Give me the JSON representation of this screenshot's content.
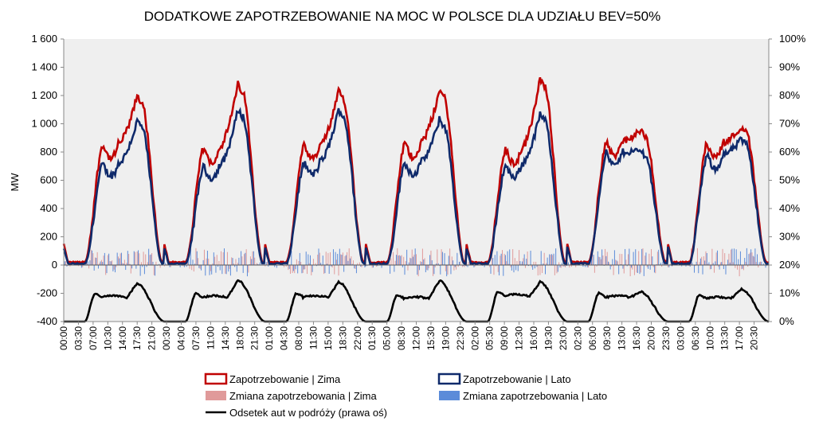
{
  "chart_data": {
    "type": "line",
    "title": "DODATKOWE ZAPOTRZEBOWANIE NA MOC W POLSCE DLA UDZIAŁU BEV=50%",
    "ylabel": "MW",
    "xlabel": "",
    "ylim": [
      -400,
      1600
    ],
    "yticks": [
      -400,
      -200,
      0,
      200,
      400,
      600,
      800,
      "1 000",
      "1 200",
      "1 400",
      "1 600"
    ],
    "y2lim": [
      0,
      100
    ],
    "y2ticks": [
      "0%",
      "10%",
      "20%",
      "30%",
      "40%",
      "50%",
      "60%",
      "70%",
      "80%",
      "90%",
      "100%"
    ],
    "x_tick_labels": [
      "00:00",
      "03:30",
      "07:00",
      "10:30",
      "14:00",
      "17:30",
      "21:00",
      "00:30",
      "04:00",
      "07:30",
      "11:00",
      "14:30",
      "18:00",
      "21:30",
      "01:00",
      "04:30",
      "08:00",
      "11:30",
      "15:00",
      "18:30",
      "22:00",
      "01:30",
      "05:00",
      "08:30",
      "12:00",
      "15:30",
      "19:00",
      "22:30",
      "02:00",
      "05:30",
      "09:00",
      "12:30",
      "16:00",
      "19:30",
      "23:00",
      "02:30",
      "06:00",
      "09:30",
      "13:00",
      "16:30",
      "20:00",
      "23:30",
      "03:00",
      "06:30",
      "10:00",
      "13:30",
      "17:00",
      "20:30"
    ],
    "x_step_hours": 3.5,
    "series": [
      {
        "name": "Zapotrzebowanie | Zima",
        "color": "#c00000",
        "axis": "left",
        "daily_peaks_mw": [
          1200,
          1280,
          1230,
          1240,
          1320,
          950,
          980
        ],
        "daily_plateau_mw": [
          860,
          830,
          850,
          870,
          820,
          880,
          870
        ],
        "night_min_mw": 20
      },
      {
        "name": "Zapotrzebowanie | Lato",
        "color": "#0f2a6b",
        "axis": "left",
        "daily_peaks_mw": [
          1020,
          1100,
          1100,
          1030,
          1070,
          810,
          890
        ],
        "daily_plateau_mw": [
          720,
          700,
          730,
          730,
          710,
          800,
          780
        ],
        "night_min_mw": 10
      },
      {
        "name": "Zmiana zapotrzebowania | Zima",
        "color": "#e09a9a",
        "axis": "left",
        "range_mw": [
          -100,
          150
        ]
      },
      {
        "name": "Zmiana zapotrzebowania | Lato",
        "color": "#5b8bd9",
        "axis": "left",
        "range_mw": [
          -100,
          150
        ]
      },
      {
        "name": "Odsetek aut w podróży (prawa oś)",
        "color": "#000000",
        "axis": "right",
        "daily_peaks_pct": [
          13.5,
          14.5,
          14,
          14.5,
          14,
          10.5,
          11.5
        ],
        "daily_plateau_pct": [
          9.5,
          9.5,
          9.5,
          9,
          10,
          9.5,
          9
        ],
        "night_min_pct": 0
      }
    ],
    "legend": {
      "placement": "bottom",
      "items": [
        {
          "label": "Zapotrzebowanie | Zima",
          "swatch": "box-red"
        },
        {
          "label": "Zapotrzebowanie | Lato",
          "swatch": "box-blue"
        },
        {
          "label": "Zmiana zapotrzebowania | Zima",
          "swatch": "fill-pink"
        },
        {
          "label": "Zmiana zapotrzebowania | Lato",
          "swatch": "fill-blue"
        },
        {
          "label": "Odsetek aut w podróży (prawa oś)",
          "swatch": "line-black"
        }
      ]
    },
    "grid": false
  }
}
